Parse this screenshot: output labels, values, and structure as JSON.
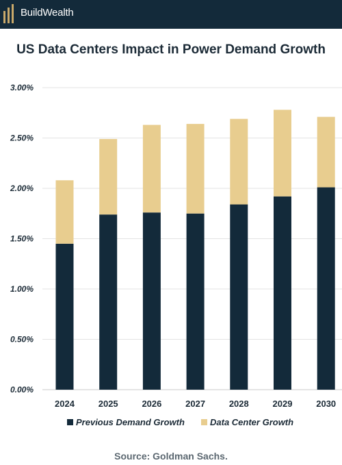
{
  "header": {
    "brand": "BuildWealth",
    "logo_icon": "buildwealth-logo-icon",
    "background": "#132a3a"
  },
  "chart_data": {
    "type": "bar",
    "stacked": true,
    "title": "US Data Centers Impact in Power Demand Growth",
    "categories": [
      "2024",
      "2025",
      "2026",
      "2027",
      "2028",
      "2029",
      "2030"
    ],
    "series": [
      {
        "name": "Previous Demand Growth",
        "color": "#132a3a",
        "values": [
          1.45,
          1.74,
          1.76,
          1.75,
          1.84,
          1.92,
          2.01
        ]
      },
      {
        "name": "Data Center Growth",
        "color": "#e8cd8f",
        "values": [
          0.63,
          0.75,
          0.87,
          0.89,
          0.85,
          0.86,
          0.7
        ]
      }
    ],
    "ylim": [
      0,
      3.0
    ],
    "yticks": [
      "0.00%",
      "0.50%",
      "1.00%",
      "1.50%",
      "2.00%",
      "2.50%",
      "3.00%"
    ],
    "grid": true,
    "legend_position": "bottom"
  },
  "source": "Source: Goldman Sachs."
}
